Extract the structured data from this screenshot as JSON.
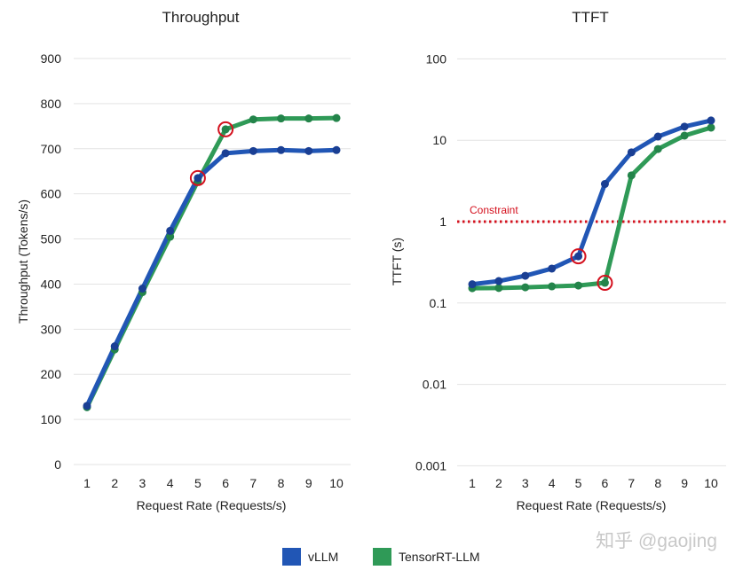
{
  "chart_data": [
    {
      "type": "line",
      "title": "Throughput",
      "xlabel": "Request Rate (Requests/s)",
      "ylabel": "Throughput (Tokens/s)",
      "x": [
        1,
        2,
        3,
        4,
        5,
        6,
        7,
        8,
        9,
        10
      ],
      "ylim": [
        0,
        900
      ],
      "yticks": [
        0,
        100,
        200,
        300,
        400,
        500,
        600,
        700,
        800,
        900
      ],
      "grid": true,
      "series": [
        {
          "name": "vLLM",
          "color": "#2156b5",
          "values": [
            130,
            262,
            390,
            518,
            635,
            690,
            695,
            697,
            695,
            697
          ]
        },
        {
          "name": "TensorRT-LLM",
          "color": "#2f9a57",
          "values": [
            127,
            255,
            382,
            505,
            628,
            743,
            765,
            767,
            767,
            768
          ]
        }
      ],
      "highlighted": [
        {
          "series": "vLLM",
          "x": 5
        },
        {
          "series": "TensorRT-LLM",
          "x": 6
        }
      ]
    },
    {
      "type": "line",
      "title": "TTFT",
      "xlabel": "Request Rate (Requests/s)",
      "ylabel": "TTFT (s)",
      "x": [
        1,
        2,
        3,
        4,
        5,
        6,
        7,
        8,
        9,
        10
      ],
      "yscale": "log",
      "ylim": [
        0.001,
        100
      ],
      "yticks": [
        "0.001",
        "0.01",
        "0.1",
        "1",
        "10",
        "100"
      ],
      "grid": true,
      "series": [
        {
          "name": "vLLM",
          "color": "#2156b5",
          "values": [
            0.17,
            0.186,
            0.216,
            0.265,
            0.375,
            2.9,
            7.1,
            11.1,
            14.7,
            17.5
          ]
        },
        {
          "name": "TensorRT-LLM",
          "color": "#2f9a57",
          "values": [
            0.152,
            0.153,
            0.156,
            0.16,
            0.164,
            0.177,
            3.7,
            7.8,
            11.4,
            14.3
          ]
        }
      ],
      "constraint": {
        "label": "Constraint",
        "value": 1,
        "color": "#d4111e"
      },
      "highlighted": [
        {
          "series": "vLLM",
          "x": 5
        },
        {
          "series": "TensorRT-LLM",
          "x": 6
        }
      ]
    }
  ],
  "legend": {
    "position": "bottom",
    "items": [
      {
        "label": "vLLM",
        "color": "#2156b5"
      },
      {
        "label": "TensorRT-LLM",
        "color": "#2f9a57"
      }
    ]
  },
  "watermark": "知乎 @gaojing"
}
